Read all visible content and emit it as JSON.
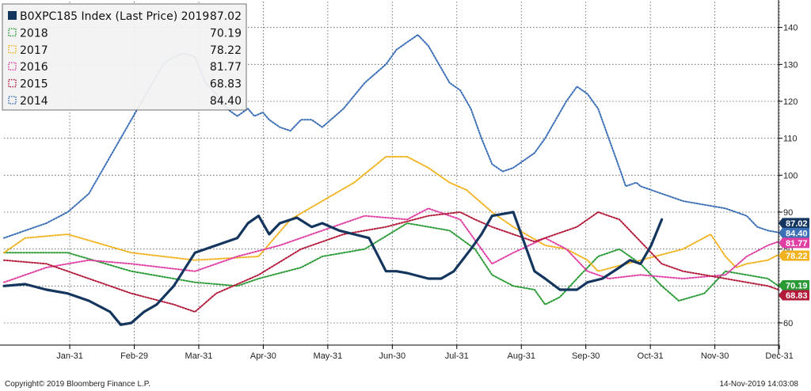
{
  "chart_data": {
    "type": "line",
    "title": "",
    "xlabel": "",
    "ylabel": "",
    "x_ticks": [
      "Jan-31",
      "Feb-29",
      "Mar-31",
      "Apr-30",
      "May-31",
      "Jun-30",
      "Jul-31",
      "Aug-31",
      "Sep-30",
      "Oct-31",
      "Nov-30",
      "Dec-31"
    ],
    "x_range": [
      0,
      365
    ],
    "y_ticks": [
      60,
      70,
      80,
      90,
      100,
      110,
      120,
      130,
      140
    ],
    "ylim": [
      54,
      147
    ],
    "grid": true,
    "legend_position": "top-left",
    "y_axis_position": "right",
    "series": [
      {
        "name": "B0XPC185 Index (Last Price) 2019",
        "last_value": "87.02",
        "color": "#14365e",
        "style": "solid",
        "x": [
          0,
          10,
          20,
          30,
          40,
          50,
          55,
          60,
          66,
          72,
          80,
          90,
          100,
          110,
          115,
          120,
          125,
          130,
          138,
          145,
          150,
          158,
          165,
          172,
          180,
          185,
          190,
          200,
          206,
          212,
          220,
          225,
          230,
          240,
          250,
          255,
          262,
          270,
          275,
          282,
          290,
          295,
          300,
          305,
          310
        ],
        "y": [
          70,
          70.5,
          69,
          68,
          66,
          63,
          59.5,
          60,
          63,
          65,
          70,
          79,
          81,
          83,
          87,
          89,
          84,
          87,
          88.5,
          86,
          87,
          85,
          84,
          83,
          74,
          74,
          73.5,
          72,
          72,
          74,
          80,
          84,
          89,
          90,
          74,
          72,
          69,
          69,
          71,
          72,
          75,
          77,
          76,
          81,
          88
        ]
      },
      {
        "name": "2018",
        "last_value": "70.19",
        "color": "#2a9a35",
        "style": "dotted",
        "x": [
          0,
          30,
          60,
          90,
          110,
          120,
          140,
          150,
          170,
          190,
          210,
          222,
          230,
          240,
          250,
          255,
          262,
          270,
          280,
          290,
          300,
          310,
          318,
          330,
          340,
          350,
          360,
          365
        ],
        "y": [
          79,
          79,
          74,
          71,
          70,
          72,
          75,
          78,
          80,
          87,
          85,
          80,
          73,
          70,
          69,
          65,
          67,
          72,
          78,
          80,
          76,
          70,
          66,
          68,
          74,
          73,
          72,
          70
        ]
      },
      {
        "name": "2017",
        "last_value": "78.22",
        "color": "#f2b21e",
        "style": "dotted",
        "x": [
          0,
          10,
          30,
          60,
          90,
          120,
          135,
          150,
          165,
          180,
          190,
          200,
          210,
          218,
          230,
          240,
          255,
          265,
          275,
          280,
          300,
          320,
          333,
          340,
          345,
          350,
          360,
          365
        ],
        "y": [
          79,
          83,
          84,
          79,
          77,
          78,
          88,
          93,
          98,
          105,
          105,
          102,
          98,
          96,
          90,
          86,
          81,
          80,
          77,
          74,
          77,
          80,
          84,
          78,
          75,
          76,
          77,
          78.5
        ]
      },
      {
        "name": "2016",
        "last_value": "81.77",
        "color": "#df3fa3",
        "style": "dotted",
        "x": [
          0,
          20,
          40,
          60,
          90,
          110,
          130,
          150,
          170,
          190,
          200,
          215,
          225,
          230,
          240,
          255,
          265,
          275,
          285,
          300,
          320,
          340,
          350,
          360,
          365
        ],
        "y": [
          71,
          75,
          77,
          76,
          74,
          78,
          81,
          85,
          89,
          88,
          91,
          88,
          80,
          76,
          79,
          83,
          80,
          74,
          72,
          73,
          72,
          73,
          78,
          81,
          82
        ]
      },
      {
        "name": "2015",
        "last_value": "68.83",
        "color": "#b31a3a",
        "style": "dotted",
        "x": [
          0,
          20,
          40,
          60,
          80,
          90,
          100,
          120,
          140,
          160,
          180,
          200,
          215,
          222,
          230,
          240,
          250,
          260,
          270,
          280,
          290,
          300,
          310,
          320,
          330,
          340,
          350,
          360,
          365
        ],
        "y": [
          77,
          76,
          72,
          68,
          65,
          63,
          68,
          73,
          80,
          84,
          86,
          89,
          90,
          88,
          86,
          84,
          82,
          84,
          86,
          90,
          88,
          82,
          76,
          74,
          73,
          72,
          71,
          70,
          69
        ]
      },
      {
        "name": "2014",
        "last_value": "84.40",
        "color": "#3b6fb6",
        "style": "dotted",
        "x": [
          0,
          10,
          20,
          30,
          40,
          50,
          60,
          70,
          75,
          80,
          85,
          90,
          95,
          100,
          105,
          110,
          115,
          118,
          122,
          125,
          130,
          135,
          140,
          145,
          150,
          160,
          170,
          180,
          185,
          190,
          195,
          200,
          205,
          210,
          215,
          220,
          225,
          230,
          235,
          240,
          245,
          250,
          255,
          260,
          265,
          270,
          275,
          280,
          285,
          290,
          293,
          298,
          300,
          305,
          310,
          315,
          320,
          330,
          340,
          350,
          355,
          360,
          365
        ],
        "y": [
          83,
          85,
          87,
          90,
          95,
          105,
          115,
          125,
          130,
          132,
          133,
          132,
          125,
          122,
          118,
          116,
          118,
          116,
          117,
          115,
          113,
          112,
          115,
          115,
          113,
          118,
          125,
          130,
          134,
          136,
          138,
          135,
          130,
          125,
          123,
          118,
          110,
          103,
          101,
          102,
          104,
          106,
          110,
          115,
          120,
          124,
          122,
          118,
          110,
          102,
          97,
          98,
          97,
          96,
          95,
          94,
          93,
          92,
          91,
          89,
          86,
          85,
          84.5
        ]
      }
    ],
    "end_tags": [
      {
        "label": "87.02",
        "value": 87.02,
        "color": "#14365e"
      },
      {
        "label": "84.40",
        "value": 84.4,
        "color": "#3b6fb6"
      },
      {
        "label": "81.77",
        "value": 81.77,
        "color": "#df3fa3"
      },
      {
        "label": "78.22",
        "value": 78.22,
        "color": "#f2b21e",
        "text_color": "#000000"
      },
      {
        "label": "70.19",
        "value": 70.19,
        "color": "#2a9a35"
      },
      {
        "label": "68.83",
        "value": 68.83,
        "color": "#b31a3a"
      }
    ]
  },
  "footer": {
    "copyright": "Copyright© 2019 Bloomberg Finance L.P.",
    "timestamp": "14-Nov-2019 14:03:08"
  }
}
